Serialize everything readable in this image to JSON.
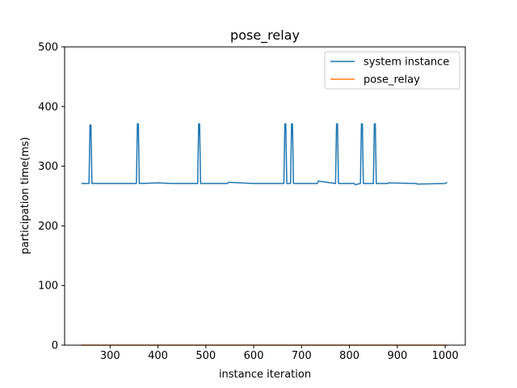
{
  "chart_data": {
    "type": "line",
    "title": "pose_relay",
    "xlabel": "instance iteration",
    "ylabel": "participation time(ms)",
    "xlim": [
      205,
      1042
    ],
    "ylim": [
      0,
      500
    ],
    "xticks": [
      300,
      400,
      500,
      600,
      700,
      800,
      900,
      1000
    ],
    "yticks": [
      0,
      100,
      200,
      300,
      400,
      500
    ],
    "grid": false,
    "legend_position": "upper right",
    "series": [
      {
        "name": "system instance",
        "color": "#1f77b4",
        "x": [
          240,
          256,
          258,
          260,
          262,
          300,
          355,
          357,
          359,
          361,
          400,
          430,
          483,
          485,
          487,
          489,
          545,
          547,
          600,
          663,
          665,
          667,
          669,
          677,
          679,
          681,
          683,
          733,
          735,
          771,
          773,
          775,
          777,
          810,
          812,
          823,
          825,
          827,
          829,
          850,
          852,
          854,
          856,
          880,
          882,
          940,
          942,
          1000,
          1004
        ],
        "y": [
          271,
          271,
          369,
          369,
          271,
          271,
          271,
          371,
          371,
          271,
          272,
          271,
          271,
          371,
          371,
          271,
          271,
          273,
          271,
          271,
          371,
          371,
          271,
          271,
          371,
          371,
          271,
          271,
          275,
          271,
          371,
          371,
          271,
          271,
          269,
          271,
          371,
          371,
          271,
          271,
          371,
          371,
          271,
          271,
          272,
          271,
          270,
          271,
          273
        ]
      },
      {
        "name": "pose_relay",
        "color": "#ff7f0e",
        "x": [
          240,
          1004
        ],
        "y": [
          0,
          0
        ]
      }
    ]
  }
}
